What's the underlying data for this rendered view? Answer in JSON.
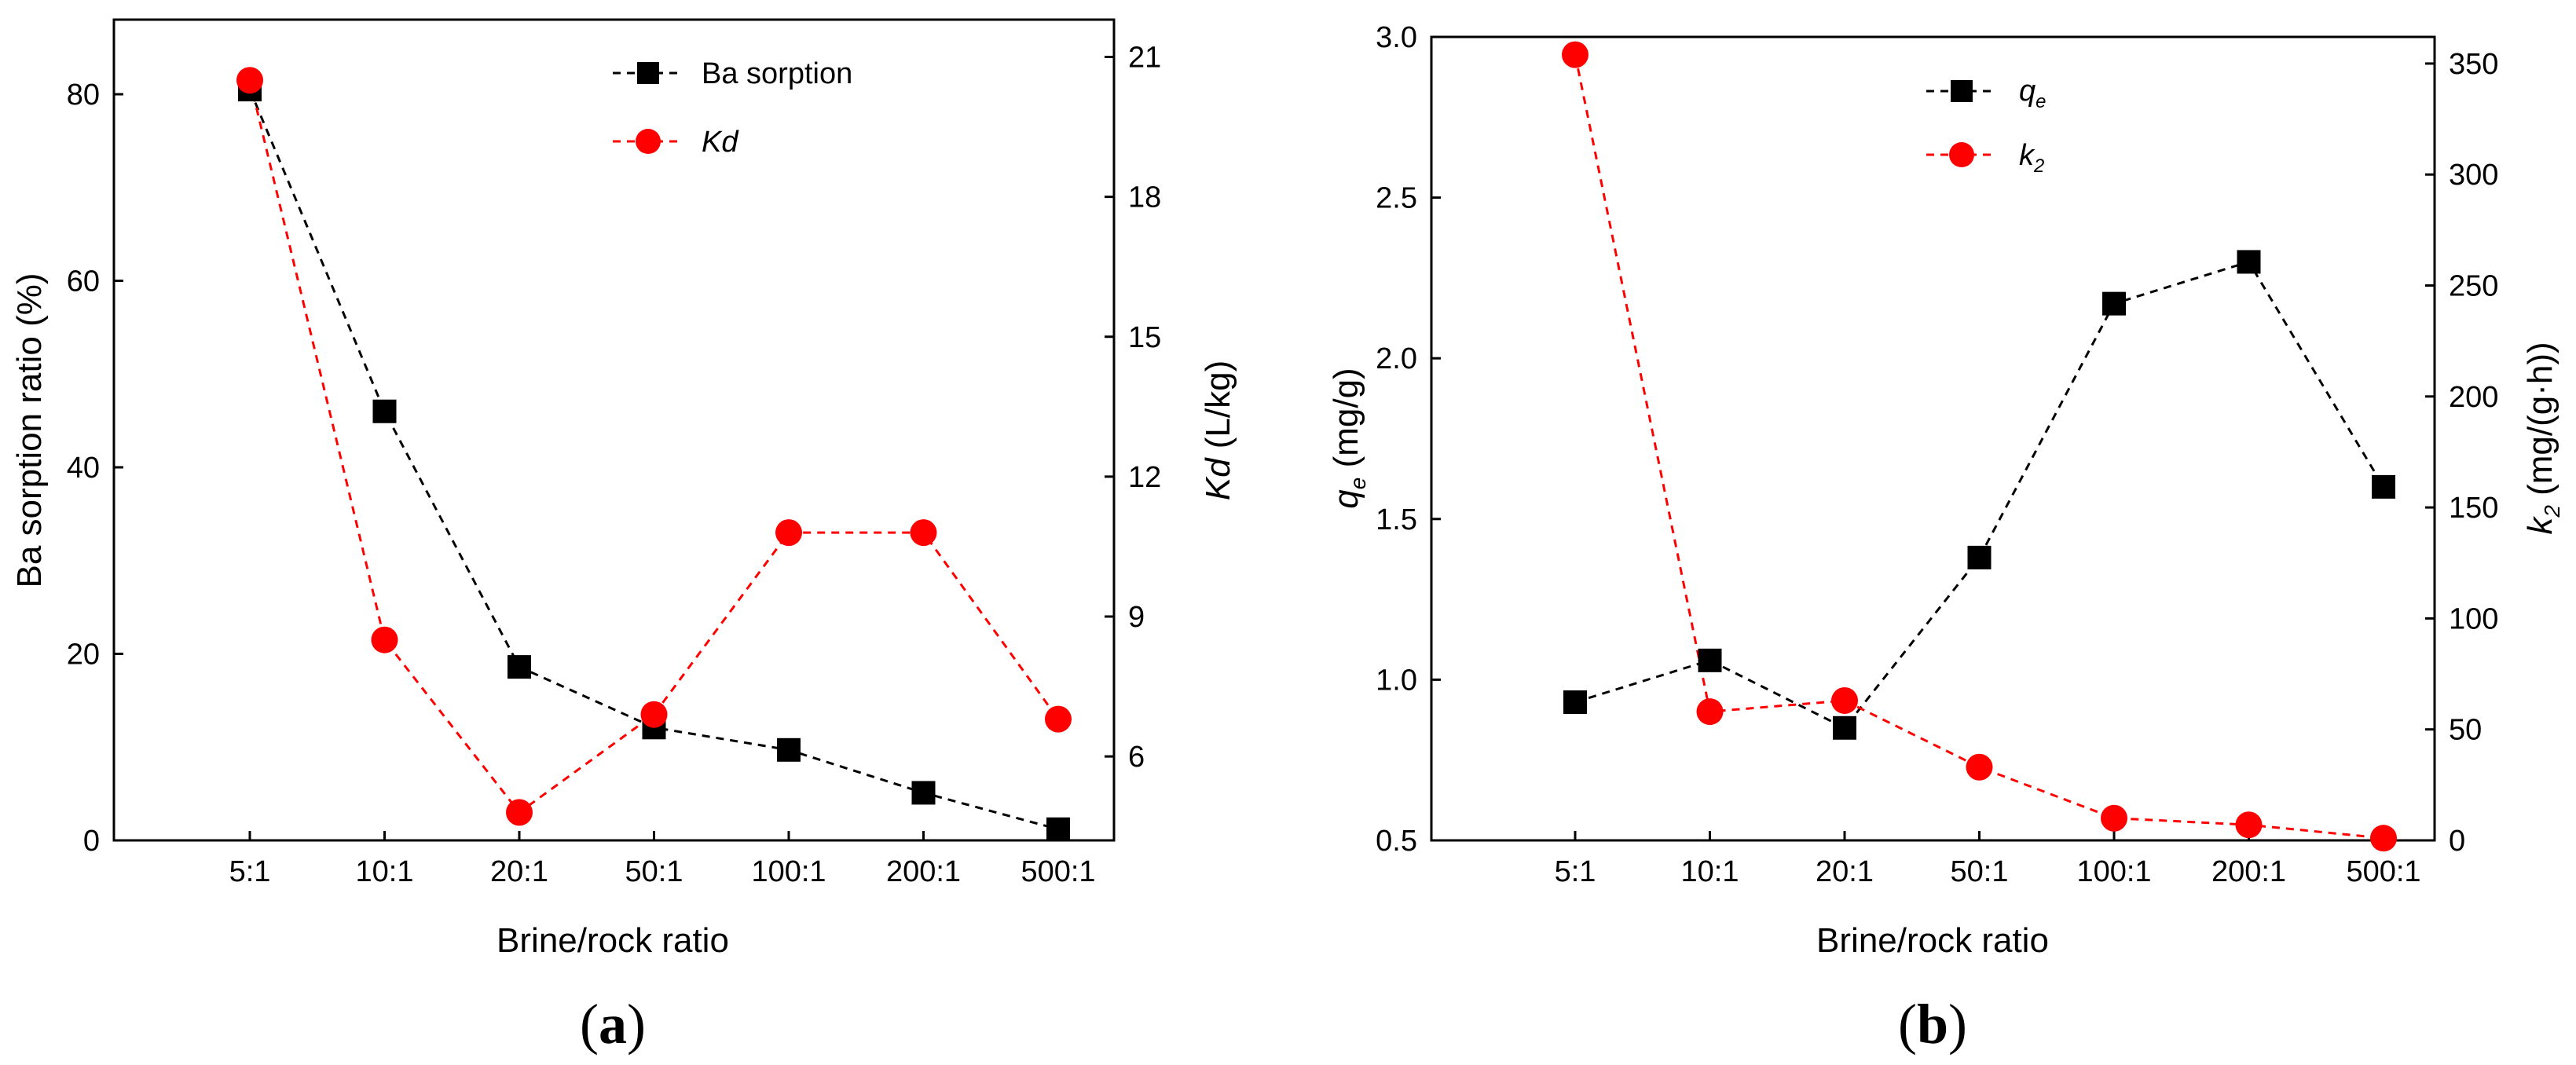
{
  "chart_data": [
    {
      "type": "line",
      "panel": "a",
      "xlabel": "Brine/rock ratio",
      "categories": [
        "5:1",
        "10:1",
        "20:1",
        "50:1",
        "100:1",
        "200:1",
        "500:1"
      ],
      "left_axis": {
        "label": "Ba sorption ratio (%)",
        "ylim": [
          0,
          88
        ],
        "ticks": [
          0,
          20,
          40,
          60,
          80
        ]
      },
      "right_axis": {
        "label_italic": "Kd",
        "label_rest": " (L/kg)",
        "ylim": [
          4.2,
          21.8
        ],
        "ticks": [
          6,
          9,
          12,
          15,
          18,
          21
        ]
      },
      "series": [
        {
          "name": "Ba sorption",
          "axis": "left",
          "marker": "square",
          "color": "#000000",
          "values": [
            80.5,
            46,
            18.6,
            12.1,
            9.7,
            5.1,
            1.2
          ]
        },
        {
          "name": "Kd",
          "name_italic": true,
          "axis": "right",
          "marker": "circle",
          "color": "#ff0000",
          "values": [
            20.5,
            8.5,
            4.8,
            6.9,
            10.8,
            10.8,
            6.8
          ]
        }
      ]
    },
    {
      "type": "line",
      "panel": "b",
      "xlabel": "Brine/rock ratio",
      "categories": [
        "5:1",
        "10:1",
        "20:1",
        "50:1",
        "100:1",
        "200:1",
        "500:1"
      ],
      "left_axis": {
        "label_sym": "q",
        "label_sub": "e",
        "label_rest": " (mg/g)",
        "ylim": [
          0.5,
          3.0
        ],
        "ticks": [
          "0.5",
          "1.0",
          "1.5",
          "2.0",
          "2.5",
          "3.0"
        ]
      },
      "right_axis": {
        "label_sym": "k",
        "label_sub": "2",
        "label_rest": " (mg/(g·h))",
        "ylim": [
          0,
          362
        ],
        "ticks": [
          0,
          50,
          100,
          150,
          200,
          250,
          300,
          350
        ]
      },
      "series": [
        {
          "name_sym": "q",
          "name_sub": "e",
          "axis": "left",
          "marker": "square",
          "color": "#000000",
          "values": [
            0.93,
            1.06,
            0.85,
            1.38,
            2.17,
            2.3,
            1.6
          ]
        },
        {
          "name_sym": "k",
          "name_sub": "2",
          "axis": "right",
          "marker": "circle",
          "color": "#ff0000",
          "values": [
            354,
            58,
            63,
            33,
            10,
            7,
            1
          ]
        }
      ]
    }
  ],
  "panel_labels": {
    "a": "a",
    "b": "b"
  }
}
